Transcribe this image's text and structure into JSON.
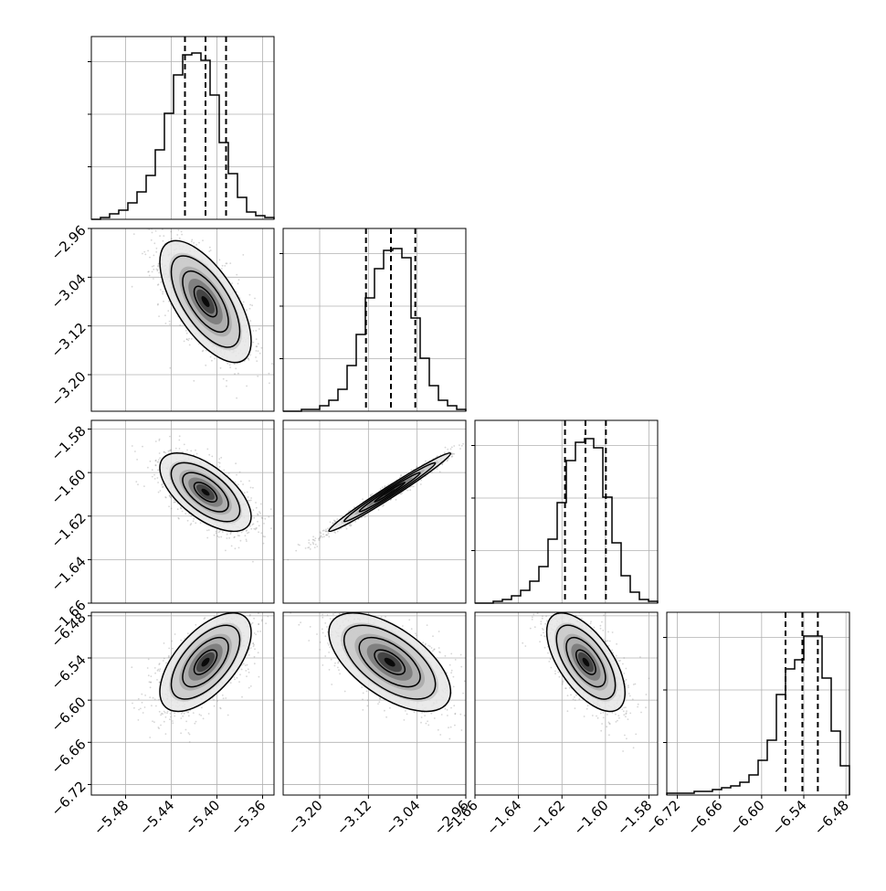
{
  "chart_data": {
    "type": "corner",
    "grid": true,
    "colors": {
      "line": "#000000",
      "grid": "#b0b0b0",
      "scatter": "#8a8a8a"
    },
    "parameters": [
      {
        "index": 0,
        "range": [
          -5.51,
          -5.35
        ],
        "ticks": [
          -5.48,
          -5.44,
          -5.4,
          -5.36
        ],
        "tick_labels": [
          "−5.48",
          "−5.44",
          "−5.40",
          "−5.36"
        ],
        "quantiles": [
          -5.428,
          -5.41,
          -5.392
        ]
      },
      {
        "index": 1,
        "range": [
          -3.26,
          -2.96
        ],
        "ticks": [
          -3.2,
          -3.12,
          -3.04,
          -2.96
        ],
        "tick_labels": [
          "−3.20",
          "−3.12",
          "−3.04",
          "−2.96"
        ],
        "quantiles": [
          -3.124,
          -3.083,
          -3.043
        ]
      },
      {
        "index": 2,
        "range": [
          -1.66,
          -1.576
        ],
        "ticks": [
          -1.66,
          -1.64,
          -1.62,
          -1.6,
          -1.58
        ],
        "tick_labels": [
          "−1.66",
          "−1.64",
          "−1.62",
          "−1.60",
          "−1.58"
        ],
        "quantiles": [
          -1.6186,
          -1.6092,
          -1.5998
        ]
      },
      {
        "index": 3,
        "range": [
          -6.735,
          -6.475
        ],
        "ticks": [
          -6.72,
          -6.66,
          -6.6,
          -6.54,
          -6.48
        ],
        "tick_labels": [
          "−6.72",
          "−6.66",
          "−6.60",
          "−6.54",
          "−6.48"
        ],
        "quantiles": [
          -6.566,
          -6.542,
          -6.52
        ]
      }
    ],
    "histograms": [
      {
        "param": 0,
        "heights": [
          0.0,
          0.01,
          0.03,
          0.05,
          0.09,
          0.15,
          0.24,
          0.38,
          0.58,
          0.79,
          0.9,
          0.91,
          0.87,
          0.68,
          0.42,
          0.25,
          0.12,
          0.04,
          0.02,
          0.01
        ]
      },
      {
        "param": 1,
        "heights": [
          0.0,
          0.0,
          0.01,
          0.01,
          0.03,
          0.06,
          0.12,
          0.25,
          0.42,
          0.62,
          0.78,
          0.88,
          0.89,
          0.84,
          0.51,
          0.29,
          0.14,
          0.06,
          0.03,
          0.01
        ]
      },
      {
        "param": 2,
        "heights": [
          0.0,
          0.0,
          0.01,
          0.02,
          0.04,
          0.07,
          0.12,
          0.2,
          0.35,
          0.55,
          0.78,
          0.88,
          0.9,
          0.85,
          0.58,
          0.33,
          0.15,
          0.06,
          0.02,
          0.01
        ]
      },
      {
        "param": 3,
        "heights": [
          0.01,
          0.01,
          0.01,
          0.02,
          0.02,
          0.03,
          0.04,
          0.05,
          0.07,
          0.11,
          0.19,
          0.3,
          0.55,
          0.69,
          0.74,
          0.87,
          0.87,
          0.64,
          0.35,
          0.16
        ]
      }
    ],
    "scatter_panels": [
      {
        "x_param": 0,
        "y_param": 1,
        "center": [
          -5.41,
          -3.08
        ],
        "sigma": [
          0.02,
          0.05
        ],
        "correlation": -0.65
      },
      {
        "x_param": 0,
        "y_param": 2,
        "center": [
          -5.41,
          -1.609
        ],
        "sigma": [
          0.02,
          0.009
        ],
        "correlation": -0.62
      },
      {
        "x_param": 1,
        "y_param": 2,
        "center": [
          -3.085,
          -1.609
        ],
        "sigma": [
          0.05,
          0.009
        ],
        "correlation": 0.985
      },
      {
        "x_param": 0,
        "y_param": 3,
        "center": [
          -5.41,
          -6.546
        ],
        "sigma": [
          0.02,
          0.035
        ],
        "correlation": 0.6
      },
      {
        "x_param": 1,
        "y_param": 3,
        "center": [
          -3.085,
          -6.546
        ],
        "sigma": [
          0.05,
          0.035
        ],
        "correlation": -0.6
      },
      {
        "x_param": 2,
        "y_param": 3,
        "center": [
          -1.609,
          -6.546
        ],
        "sigma": [
          0.009,
          0.035
        ],
        "correlation": -0.62
      }
    ]
  }
}
